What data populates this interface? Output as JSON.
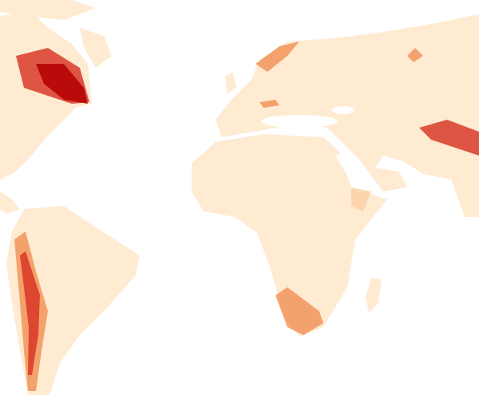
{
  "map": {
    "background_color": "#ffffff",
    "land_color": "#feebd2",
    "hotspot_colors": {
      "low": "#fdd0a2",
      "medium": "#f08a4b",
      "high": "#d7301f",
      "highest": "#b30000"
    }
  }
}
